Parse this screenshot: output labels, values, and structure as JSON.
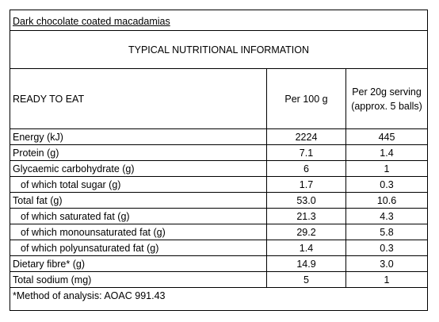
{
  "title": "Dark chocolate coated macadamias",
  "subtitle": "TYPICAL NUTRITIONAL INFORMATION",
  "header": {
    "label": "READY TO  EAT",
    "col1": "Per 100 g",
    "col2_line1": "Per 20g serving",
    "col2_line2": "(approx. 5 balls)"
  },
  "rows": [
    {
      "label": "Energy (kJ)",
      "per100": "2224",
      "perServing": "445"
    },
    {
      "label": "Protein (g)",
      "per100": "7.1",
      "perServing": "1.4"
    },
    {
      "label": "Glycaemic carbohydrate (g)",
      "per100": "6",
      "perServing": "1"
    },
    {
      "label": "of which total sugar (g)",
      "per100": "1.7",
      "perServing": "0.3"
    },
    {
      "label": "Total fat (g)",
      "per100": "53.0",
      "perServing": "10.6"
    },
    {
      "label": "of which saturated fat (g)",
      "per100": "21.3",
      "perServing": "4.3"
    },
    {
      "label": "of which monounsaturated fat (g)",
      "per100": "29.2",
      "perServing": "5.8"
    },
    {
      "label": "of which polyunsaturated fat (g)",
      "per100": "1.4",
      "perServing": "0.3"
    },
    {
      "label": "Dietary fibre* (g)",
      "per100": "14.9",
      "perServing": "3.0"
    },
    {
      "label": "Total sodium (mg)",
      "per100": "5",
      "perServing": "1"
    }
  ],
  "footnote": "*Method of analysis: AOAC 991.43"
}
